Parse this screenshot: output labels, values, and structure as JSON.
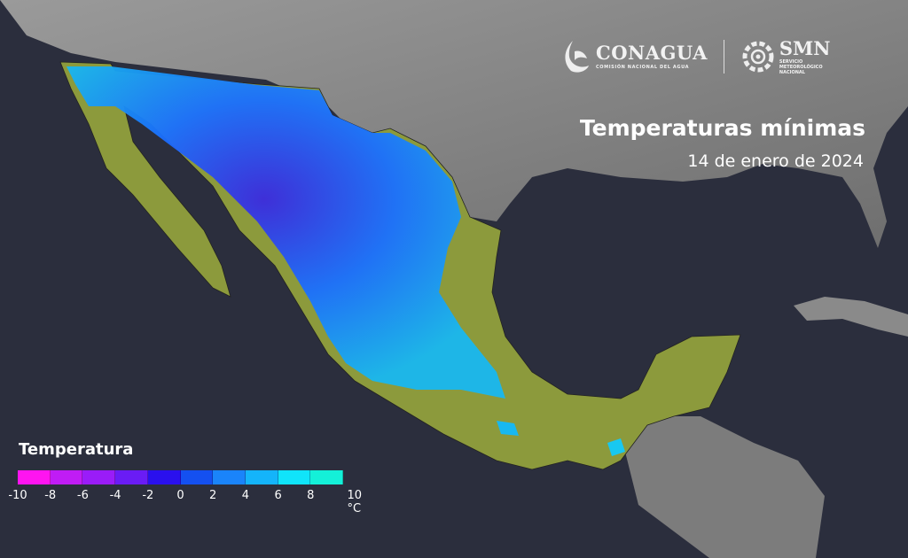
{
  "logos": {
    "conagua": {
      "name": "CONAGUA",
      "subtitle": "COMISIÓN NACIONAL DEL AGUA"
    },
    "smn": {
      "name": "SMN",
      "subtitle_lines": [
        "SERVICIO",
        "METEOROLÓGICO",
        "NACIONAL"
      ]
    }
  },
  "title": "Temperaturas mínimas",
  "date": "14 de enero de 2024",
  "legend": {
    "title": "Temperatura",
    "unit": "°C",
    "ticks": [
      "-10",
      "-8",
      "-6",
      "-4",
      "-2",
      "0",
      "2",
      "4",
      "6",
      "8",
      "10 °C"
    ],
    "colors": [
      "#ff14f0",
      "#c01cf5",
      "#9a1cf8",
      "#6a1cf5",
      "#2a10ee",
      "#1450f0",
      "#1a84fa",
      "#14b4fa",
      "#10e4fa",
      "#14f0d8"
    ]
  },
  "colors": {
    "ocean": "#2b2e3d",
    "land_foreign": "#8a8a8a",
    "land_warm": "#8a9a3a",
    "land_cold": "#1a90ff"
  }
}
